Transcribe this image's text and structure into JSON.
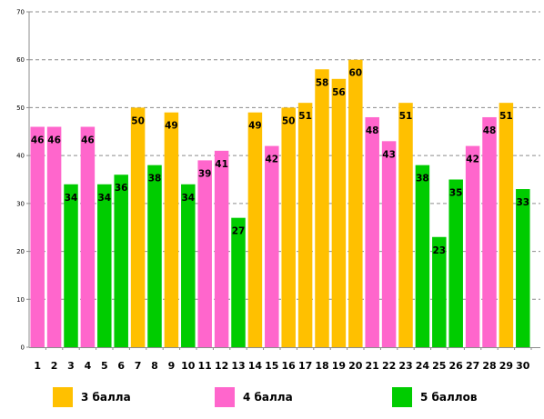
{
  "chart_data": {
    "type": "bar",
    "categories": [
      "1",
      "2",
      "3",
      "4",
      "5",
      "6",
      "7",
      "8",
      "9",
      "10",
      "11",
      "12",
      "13",
      "14",
      "15",
      "16",
      "17",
      "18",
      "19",
      "20",
      "21",
      "22",
      "23",
      "24",
      "25",
      "26",
      "27",
      "28",
      "29",
      "30"
    ],
    "values": [
      46,
      46,
      34,
      46,
      34,
      36,
      50,
      38,
      49,
      34,
      39,
      41,
      27,
      49,
      42,
      50,
      51,
      58,
      56,
      60,
      48,
      43,
      51,
      38,
      23,
      35,
      42,
      48,
      51,
      33
    ],
    "groups": [
      "4 балла",
      "4 балла",
      "5 баллов",
      "4 балла",
      "5 баллов",
      "5 баллов",
      "3 балла",
      "5 баллов",
      "3 балла",
      "5 баллов",
      "4 балла",
      "4 балла",
      "5 баллов",
      "3 балла",
      "4 балла",
      "3 балла",
      "3 балла",
      "3 балла",
      "3 балла",
      "3 балла",
      "4 балла",
      "4 балла",
      "3 балла",
      "5 баллов",
      "5 баллов",
      "5 баллов",
      "4 балла",
      "4 балла",
      "3 балла",
      "5 баллов"
    ],
    "ylim": [
      0,
      70
    ],
    "yticks": [
      0,
      10,
      20,
      30,
      40,
      50,
      60,
      70
    ],
    "grid": true,
    "legend_position": "bottom",
    "legend": [
      {
        "name": "3 балла",
        "color": "#FFC000"
      },
      {
        "name": "4 балла",
        "color": "#FF66CC"
      },
      {
        "name": "5 баллов",
        "color": "#00CC00"
      }
    ],
    "title": "",
    "xlabel": "",
    "ylabel": ""
  }
}
